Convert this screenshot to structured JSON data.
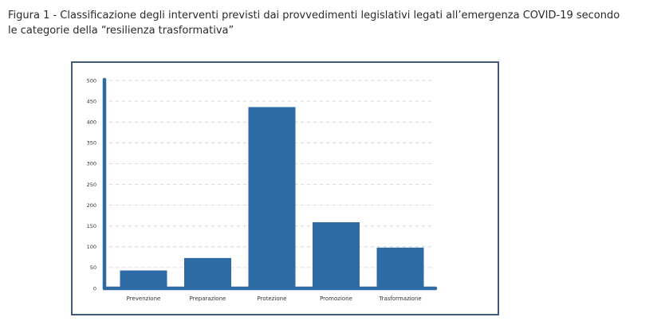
{
  "figure": {
    "caption_line1": "Figura 1 - Classificazione degli interventi previsti dai provvedimenti legislativi legati all’emergenza COVID-19 secondo",
    "caption_line2": "le categorie della “resilienza trasformativa”"
  },
  "colors": {
    "bar": "#2e6aa3",
    "axis": "#2e6aa3",
    "grid": "#cccccc",
    "frame": "#3f5a7a"
  },
  "chart_data": {
    "type": "bar",
    "categories": [
      "Prevenzione",
      "Preparazione",
      "Protezione",
      "Promozione",
      "Trasformazione"
    ],
    "values": [
      43,
      73,
      436,
      159,
      98
    ],
    "title": "",
    "xlabel": "",
    "ylabel": "",
    "ylim": [
      0,
      500
    ],
    "yticks": [
      0,
      50,
      100,
      150,
      200,
      250,
      300,
      350,
      400,
      450,
      500
    ],
    "grid": true,
    "legend": "none"
  }
}
